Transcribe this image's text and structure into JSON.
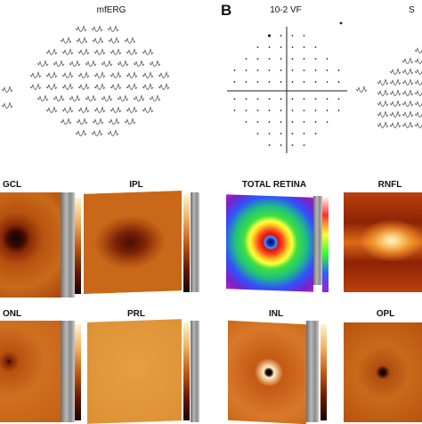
{
  "panel_labels": {
    "b": "B"
  },
  "titles": {
    "mferg": "mfERG",
    "vf": "10-2 VF",
    "vf_right_partial": "S",
    "gcl": "GCL",
    "ipl": "IPL",
    "total_retina": "TOTAL RETINA",
    "rnfl": "RNFL",
    "onl": "ONL",
    "prl": "PRL",
    "inl": "INL",
    "opl": "OPL"
  },
  "maps": {
    "gcl": {
      "colormap": "afmhot",
      "feature": "dark foveal pit"
    },
    "ipl": {
      "colormap": "afmhot",
      "feature": "dark central area"
    },
    "total_retina": {
      "colormap": "rainbow",
      "feature": "concentric foveal rings"
    },
    "rnfl": {
      "colormap": "afmhot",
      "feature": "bright temporal band"
    },
    "onl": {
      "colormap": "afmhot",
      "feature": "small dark fovea"
    },
    "prl": {
      "colormap": "afmhot",
      "feature": "uniform"
    },
    "inl": {
      "colormap": "afmhot",
      "feature": "dark foveal dot"
    },
    "opl": {
      "colormap": "afmhot",
      "feature": "dark foveal dot"
    }
  },
  "colors": {
    "afmhot_dark": "#3a0a02",
    "afmhot_mid": "#c45a14",
    "afmhot_light": "#f0b060",
    "background": "#ffffff"
  }
}
